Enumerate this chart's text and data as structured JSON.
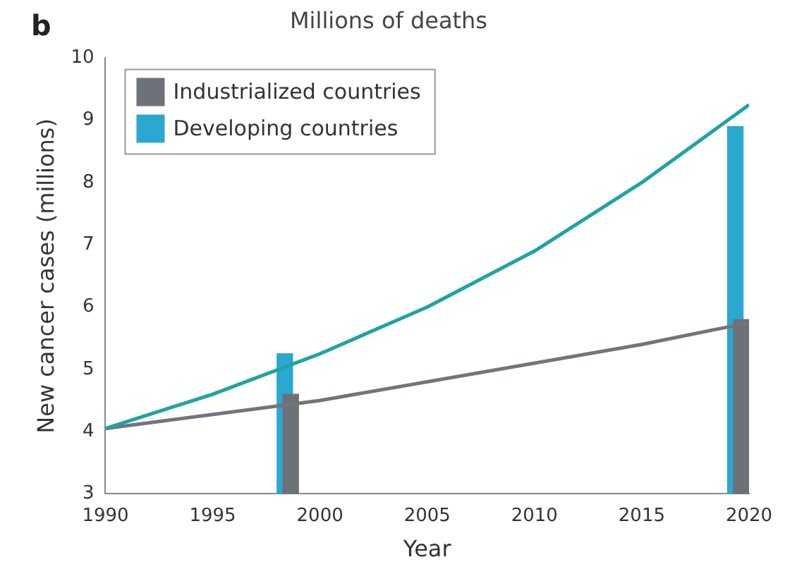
{
  "chart_data": {
    "type": "line",
    "title": "Millions of deaths",
    "annotations": [
      "b"
    ],
    "xlabel": "Year",
    "ylabel": "New cancer cases (millions)",
    "xlim": [
      1990,
      2020
    ],
    "xticks": [
      1990,
      1995,
      2000,
      2005,
      2010,
      2015,
      2020
    ],
    "ylim": [
      3,
      10
    ],
    "yticks": [
      3,
      4,
      5,
      6,
      7,
      8,
      9,
      10
    ],
    "grid": false,
    "legend": "top left",
    "marker": "none",
    "line_style": "solid",
    "series": [
      {
        "color": "#1fa3a3",
        "x": [
          1990,
          1995,
          2000,
          2005,
          2010,
          2015,
          2020
        ],
        "values": [
          4.05,
          4.6,
          5.25,
          6.0,
          6.9,
          8.0,
          9.25
        ]
      },
      {
        "color": "#71757c",
        "x": [
          1990,
          2000,
          2010,
          2015,
          2020
        ],
        "values": [
          4.05,
          4.5,
          5.1,
          5.4,
          5.75
        ]
      },
      {
        "type": "bar",
        "name": "Industrialized countries",
        "color": "#6d7178",
        "x": [
          1999,
          2020
        ],
        "values": [
          4.6,
          5.8
        ]
      },
      {
        "type": "bar",
        "name": "Developing countries",
        "color": "#2aa8d0",
        "x": [
          1998,
          2019
        ],
        "values": [
          5.25,
          8.9
        ]
      }
    ]
  }
}
